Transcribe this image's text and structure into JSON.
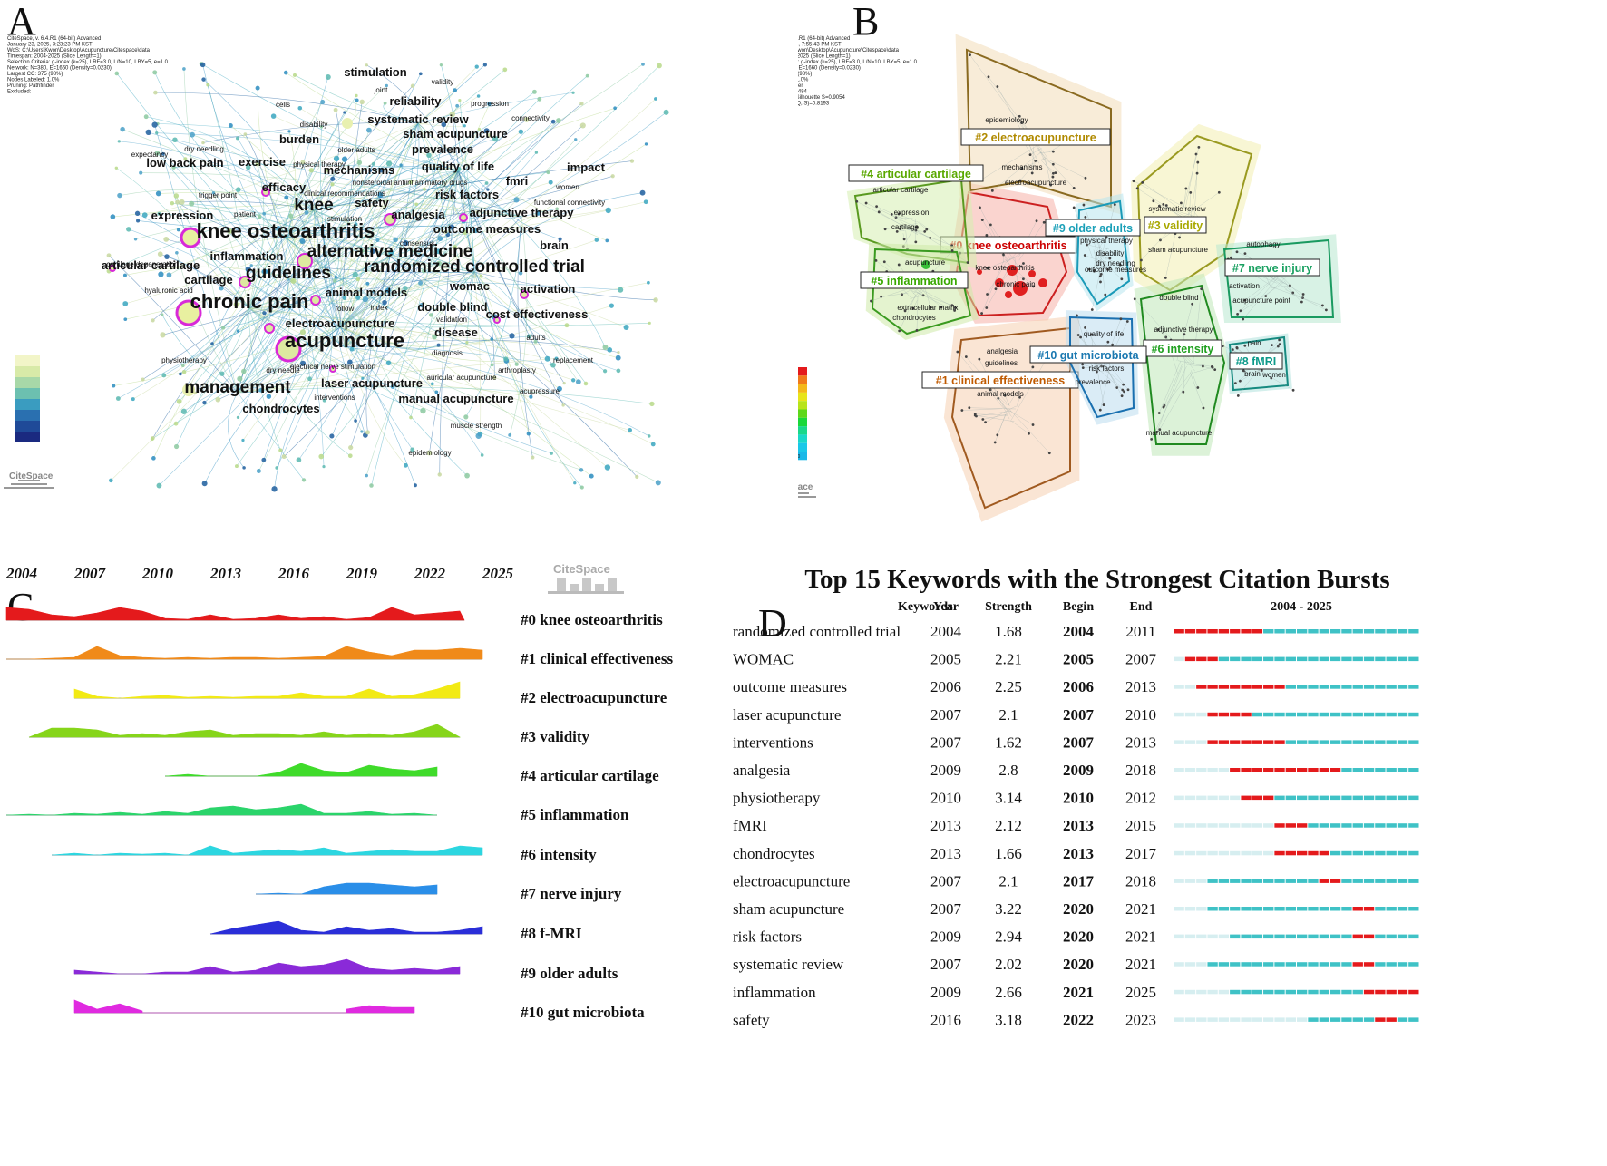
{
  "panels": {
    "a": "A",
    "b": "B",
    "c": "C",
    "d": "D"
  },
  "colors": {
    "red": "#e41a1c",
    "teal": "#3fc2c6",
    "magenta": "#d829d8"
  },
  "panel_a": {
    "logo": "CiteSpace",
    "meta": [
      "CiteSpace, v. 6.4.R1 (64-bit) Advanced",
      "January 23, 2025, 3:23:23 PM KST",
      "WoS: C:\\Users\\Kwon\\Desktop\\Acupuncture\\Citespace\\data",
      "Timespan: 2004-2025 (Slice Length=1)",
      "Selection Criteria: g-index (k=25), LRF=3.0, L/N=10, LBY=5, e=1.0",
      "Network: N=380, E=1660 (Density=0.0230)",
      "Largest CC: 375 (98%)",
      "Nodes Labeled: 1.0%",
      "Pruning: Pathfinder",
      "Excluded:"
    ],
    "nodes": [
      {
        "label": "knee osteoarthritis",
        "size": 2
      },
      {
        "label": "chronic pain",
        "size": 2
      },
      {
        "label": "acupuncture",
        "size": 2
      },
      {
        "label": "randomized controlled trial",
        "size": 2
      },
      {
        "label": "alternative medicine",
        "size": 2
      },
      {
        "label": "knee",
        "size": 2
      },
      {
        "label": "guidelines",
        "size": 2
      },
      {
        "label": "management",
        "size": 2
      },
      {
        "label": "systematic review",
        "size": 1
      },
      {
        "label": "quality of life",
        "size": 1
      },
      {
        "label": "adjunctive therapy",
        "size": 1
      },
      {
        "label": "electroacupuncture",
        "size": 1
      },
      {
        "label": "animal models",
        "size": 1
      },
      {
        "label": "sham acupuncture",
        "size": 1
      },
      {
        "label": "prevalence",
        "size": 1
      },
      {
        "label": "risk factors",
        "size": 1
      },
      {
        "label": "outcome measures",
        "size": 1
      },
      {
        "label": "manual acupuncture",
        "size": 1
      },
      {
        "label": "exercise",
        "size": 1
      },
      {
        "label": "efficacy",
        "size": 1
      },
      {
        "label": "analgesia",
        "size": 1
      },
      {
        "label": "expression",
        "size": 1
      },
      {
        "label": "low back pain",
        "size": 1
      },
      {
        "label": "articular cartilage",
        "size": 1
      },
      {
        "label": "burden",
        "size": 1
      },
      {
        "label": "reliability",
        "size": 1
      },
      {
        "label": "stimulation",
        "size": 1
      },
      {
        "label": "inflammation",
        "size": 1
      },
      {
        "label": "cartilage",
        "size": 1
      },
      {
        "label": "disease",
        "size": 1
      },
      {
        "label": "double blind",
        "size": 1
      },
      {
        "label": "laser acupuncture",
        "size": 1
      },
      {
        "label": "chondrocytes",
        "size": 1
      },
      {
        "label": "activation",
        "size": 1
      },
      {
        "label": "cost effectiveness",
        "size": 1
      },
      {
        "label": "safety",
        "size": 1
      },
      {
        "label": "fmri",
        "size": 1
      },
      {
        "label": "womac",
        "size": 1
      },
      {
        "label": "mechanisms",
        "size": 1
      },
      {
        "label": "brain",
        "size": 1
      },
      {
        "label": "impact",
        "size": 1
      },
      {
        "label": "physiotherapy",
        "size": 0
      },
      {
        "label": "validation",
        "size": 0
      },
      {
        "label": "diagnosis",
        "size": 0
      },
      {
        "label": "replacement",
        "size": 0
      },
      {
        "label": "dry needling",
        "size": 0
      },
      {
        "label": "functional connectivity",
        "size": 0
      },
      {
        "label": "epidemiology",
        "size": 0
      },
      {
        "label": "muscle strength",
        "size": 0
      },
      {
        "label": "acupressure",
        "size": 0
      },
      {
        "label": "arthroplasty",
        "size": 0
      },
      {
        "label": "adults",
        "size": 0
      },
      {
        "label": "auricular acupuncture",
        "size": 0
      },
      {
        "label": "electrical nerve stimulation",
        "size": 0
      },
      {
        "label": "interventions",
        "size": 0
      },
      {
        "label": "index",
        "size": 0
      },
      {
        "label": "follow",
        "size": 0
      },
      {
        "label": "patient",
        "size": 0
      },
      {
        "label": "trigger point",
        "size": 0
      },
      {
        "label": "women",
        "size": 0
      },
      {
        "label": "expectancy",
        "size": 0
      },
      {
        "label": "cells",
        "size": 0
      },
      {
        "label": "disability",
        "size": 0
      },
      {
        "label": "joint",
        "size": 0
      },
      {
        "label": "validity",
        "size": 0
      },
      {
        "label": "progression",
        "size": 0
      },
      {
        "label": "connectivity",
        "size": 0
      },
      {
        "label": "older adults",
        "size": 0
      },
      {
        "label": "physical therapy",
        "size": 0
      },
      {
        "label": "nonsteroidal antiinflammatory drugs",
        "size": 0
      },
      {
        "label": "clinical recommendations",
        "size": 0
      },
      {
        "label": "stimulation",
        "size": 0
      },
      {
        "label": "consensus",
        "size": 0
      },
      {
        "label": "hyaluronic acid",
        "size": 0
      },
      {
        "label": "cartilage degeneration",
        "size": 0
      },
      {
        "label": "dry needle",
        "size": 0
      }
    ]
  },
  "panel_b": {
    "logo": "CiteSpace",
    "meta": [
      "CiteSpace, v. 6.4.R1 (64-bit) Advanced",
      "January 23, 2025, 7:55:43 PM KST",
      "WoS: C:\\Users\\Kwon\\Desktop\\Acupuncture\\Citespace\\data",
      "Timespan: 2004-2025 (Slice Length=1)",
      "Selection Criteria: g-index (k=25), LRF=3.0, L/N=10, LBY=5, e=1.0",
      "Network: N=380, E=1660 (Density=0.0230)",
      "Largest CC: 375 (98%)",
      "Nodes Labeled: 1.0%",
      "Pruning: Pathfinder",
      "Modularity Q=0.7484",
      "Weighted Mean Silhouette S=0.9054",
      "Harmonic Mean(Q, S)=0.8193",
      "Excluded:"
    ],
    "clusters": [
      {
        "id": "#0",
        "label": "#0 knee osteoarthritis",
        "color": "#cc0000"
      },
      {
        "id": "#1",
        "label": "#1 clinical effectiveness",
        "color": "#c05a00"
      },
      {
        "id": "#2",
        "label": "#2 electroacupuncture",
        "color": "#b08a00"
      },
      {
        "id": "#3",
        "label": "#3 validity",
        "color": "#a8a800"
      },
      {
        "id": "#4",
        "label": "#4 articular cartilage",
        "color": "#5aa800"
      },
      {
        "id": "#5",
        "label": "#5 inflammation",
        "color": "#38a800"
      },
      {
        "id": "#6",
        "label": "#6 intensity",
        "color": "#20a020"
      },
      {
        "id": "#7",
        "label": "#7 nerve injury",
        "color": "#18a060"
      },
      {
        "id": "#8",
        "label": "#8 fMRI",
        "color": "#0e9a8a"
      },
      {
        "id": "#9",
        "label": "#9 older adults",
        "color": "#1aa0b8"
      },
      {
        "id": "#10",
        "label": "#10 gut microbiota",
        "color": "#1a78b0"
      }
    ],
    "member_labels": [
      "epidemiology",
      "mechanisms",
      "electroacupuncture",
      "articular cartilage",
      "expression",
      "cartilage",
      "acupuncture",
      "extracellular matrix",
      "chondrocytes",
      "knee osteoarthritis",
      "chronic pain",
      "physical therapy",
      "disability",
      "dry needling",
      "outcome measures",
      "systematic review",
      "sham acupuncture",
      "autophagy",
      "activation",
      "acupuncture point",
      "double blind",
      "adjunctive therapy",
      "quality of life",
      "risk factors",
      "prevalence",
      "analgesia",
      "guidelines",
      "animal models",
      "pain",
      "brain",
      "women",
      "manual acupuncture"
    ],
    "legend": [
      "#0",
      "#1",
      "#2",
      "#3",
      "#4",
      "#5",
      "#6",
      "#7",
      "#8",
      "#9",
      "#10"
    ]
  },
  "panel_c": {
    "logo": "CiteSpace",
    "years": [
      "2004",
      "2007",
      "2010",
      "2013",
      "2016",
      "2019",
      "2022",
      "2025"
    ],
    "rows": [
      {
        "label": "#0 knee osteoarthritis",
        "color": "#e41a1c"
      },
      {
        "label": "#1 clinical effectiveness",
        "color": "#f08a1a"
      },
      {
        "label": "#2 electroacupuncture",
        "color": "#f2ea14"
      },
      {
        "label": "#3 validity",
        "color": "#86d51a"
      },
      {
        "label": "#4 articular cartilage",
        "color": "#3fdb2a"
      },
      {
        "label": "#5 inflammation",
        "color": "#2ad46a"
      },
      {
        "label": "#6 intensity",
        "color": "#2cd6e0"
      },
      {
        "label": "#7 nerve injury",
        "color": "#2a8ee8"
      },
      {
        "label": "#8 f-MRI",
        "color": "#2a2ed8"
      },
      {
        "label": "#9 older adults",
        "color": "#8a2ad8"
      },
      {
        "label": "#10 gut microbiota",
        "color": "#e02ae0"
      }
    ]
  },
  "chart_data": {
    "type": "table",
    "title": "Top 15 Keywords with the Strongest Citation Bursts",
    "columns": [
      "Keywords",
      "Year",
      "Strength",
      "Begin",
      "End",
      "2004 - 2025"
    ],
    "range_start": 2004,
    "range_end": 2025,
    "rows": [
      {
        "keyword": "randomized controlled trial",
        "year": "2004",
        "strength": "1.68",
        "begin": "2004",
        "end": "2011"
      },
      {
        "keyword": "WOMAC",
        "year": "2005",
        "strength": "2.21",
        "begin": "2005",
        "end": "2007"
      },
      {
        "keyword": "outcome measures",
        "year": "2006",
        "strength": "2.25",
        "begin": "2006",
        "end": "2013"
      },
      {
        "keyword": "laser acupuncture",
        "year": "2007",
        "strength": "2.1",
        "begin": "2007",
        "end": "2010"
      },
      {
        "keyword": "interventions",
        "year": "2007",
        "strength": "1.62",
        "begin": "2007",
        "end": "2013"
      },
      {
        "keyword": "analgesia",
        "year": "2009",
        "strength": "2.8",
        "begin": "2009",
        "end": "2018"
      },
      {
        "keyword": "physiotherapy",
        "year": "2010",
        "strength": "3.14",
        "begin": "2010",
        "end": "2012"
      },
      {
        "keyword": "fMRI",
        "year": "2013",
        "strength": "2.12",
        "begin": "2013",
        "end": "2015"
      },
      {
        "keyword": "chondrocytes",
        "year": "2013",
        "strength": "1.66",
        "begin": "2013",
        "end": "2017"
      },
      {
        "keyword": "electroacupuncture",
        "year": "2007",
        "strength": "2.1",
        "begin": "2017",
        "end": "2018"
      },
      {
        "keyword": "sham acupuncture",
        "year": "2007",
        "strength": "3.22",
        "begin": "2020",
        "end": "2021"
      },
      {
        "keyword": "risk factors",
        "year": "2009",
        "strength": "2.94",
        "begin": "2020",
        "end": "2021"
      },
      {
        "keyword": "systematic review",
        "year": "2007",
        "strength": "2.02",
        "begin": "2020",
        "end": "2021"
      },
      {
        "keyword": "inflammation",
        "year": "2009",
        "strength": "2.66",
        "begin": "2021",
        "end": "2025"
      },
      {
        "keyword": "safety",
        "year": "2016",
        "strength": "3.18",
        "begin": "2022",
        "end": "2023"
      }
    ]
  }
}
